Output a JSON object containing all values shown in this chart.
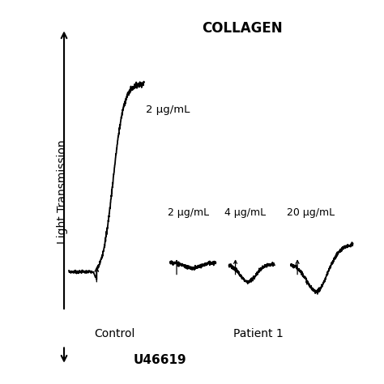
{
  "title": "COLLAGEN",
  "ylabel": "Light Transmission",
  "background_color": "#ffffff",
  "control_label": "Control",
  "patient_label": "Patient 1",
  "bottom_label": "U46619",
  "control_annotation": "2 μg/mL",
  "patient_annotations": [
    "2 μg/mL",
    "4 μg/mL",
    "20 μg/mL"
  ],
  "figsize": [
    4.74,
    4.74
  ],
  "dpi": 100
}
